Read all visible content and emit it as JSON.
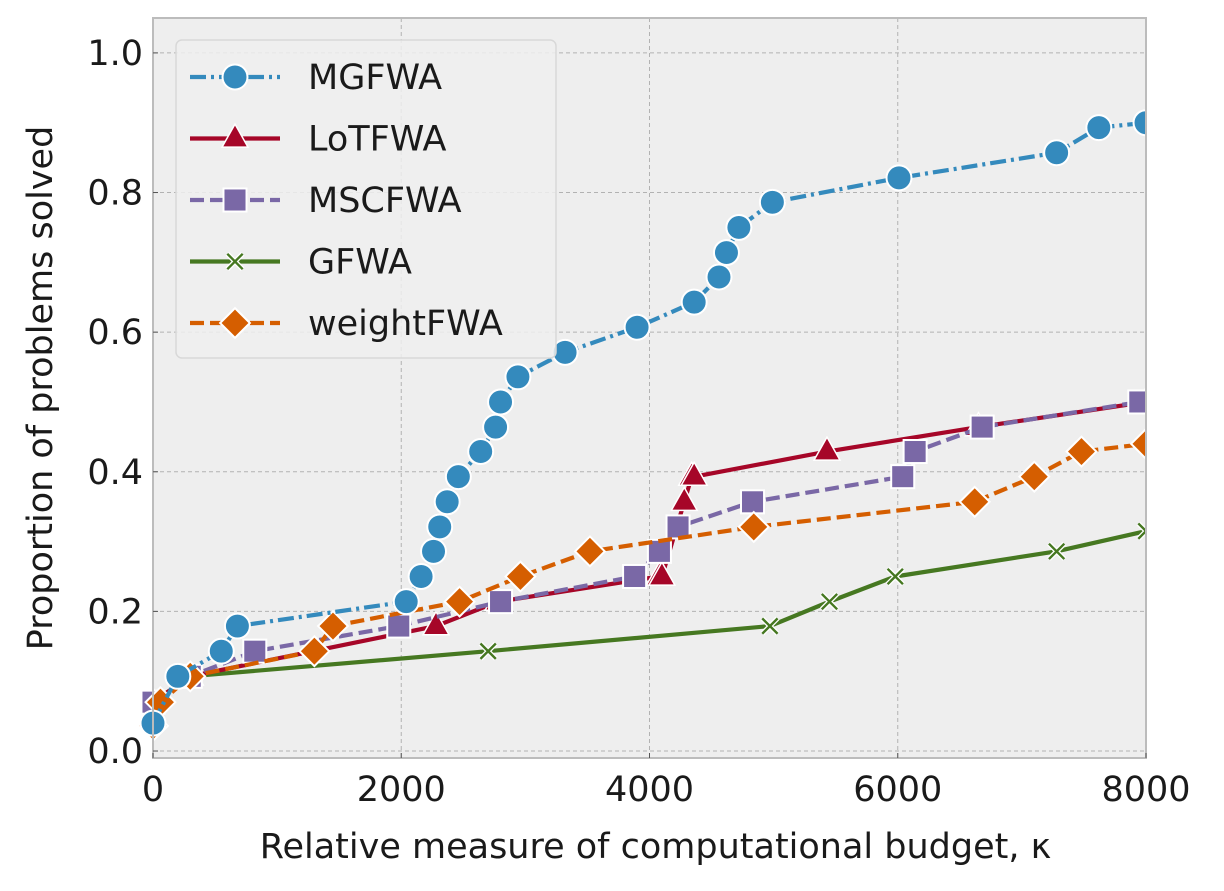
{
  "chart_data": {
    "type": "line",
    "title": "",
    "xlabel": "Relative measure of computational budget, κ",
    "ylabel": "Proportion of problems solved",
    "xlim": [
      0,
      8000
    ],
    "ylim": [
      -0.01,
      1.05
    ],
    "xticks": [
      0,
      2000,
      4000,
      6000,
      8000
    ],
    "xtick_labels": [
      "0",
      "2000",
      "4000",
      "6000",
      "8000"
    ],
    "yticks": [
      0.0,
      0.2,
      0.4,
      0.6,
      0.8,
      1.0
    ],
    "ytick_labels": [
      "0.0",
      "0.2",
      "0.4",
      "0.6",
      "0.8",
      "1.0"
    ],
    "grid": true,
    "legend_position": "top-left",
    "series": [
      {
        "name": "MGFWA",
        "color": "#348abd",
        "marker": "circle",
        "dash": "dashdot",
        "x": [
          0,
          200,
          550,
          680,
          2040,
          2160,
          2260,
          2310,
          2370,
          2460,
          2640,
          2760,
          2800,
          2940,
          3320,
          3900,
          4360,
          4560,
          4620,
          4720,
          4990,
          6010,
          7280,
          7620,
          8000
        ],
        "y": [
          0.04,
          0.107,
          0.143,
          0.179,
          0.214,
          0.25,
          0.286,
          0.321,
          0.357,
          0.393,
          0.429,
          0.464,
          0.5,
          0.536,
          0.571,
          0.607,
          0.643,
          0.679,
          0.714,
          0.75,
          0.786,
          0.821,
          0.857,
          0.893,
          0.9
        ]
      },
      {
        "name": "LoTFWA",
        "color": "#a60628",
        "marker": "triangle",
        "dash": "solid",
        "x": [
          0,
          300,
          2280,
          2780,
          4080,
          4100,
          4280,
          4340,
          4360,
          5430,
          6650,
          8000
        ],
        "y": [
          0.07,
          0.107,
          0.179,
          0.214,
          0.25,
          0.25,
          0.357,
          0.393,
          0.393,
          0.429,
          0.464,
          0.5
        ]
      },
      {
        "name": "MSCFWA",
        "color": "#7a68a6",
        "marker": "square",
        "dash": "dashed",
        "x": [
          0,
          300,
          820,
          1980,
          2800,
          3880,
          4080,
          4230,
          4830,
          6040,
          6140,
          6680,
          7950
        ],
        "y": [
          0.07,
          0.107,
          0.143,
          0.179,
          0.214,
          0.25,
          0.286,
          0.321,
          0.357,
          0.393,
          0.429,
          0.464,
          0.5
        ]
      },
      {
        "name": "GFWA",
        "color": "#467821",
        "marker": "x",
        "dash": "solid",
        "x": [
          0,
          300,
          2700,
          4970,
          5450,
          5980,
          7280,
          8000
        ],
        "y": [
          0.07,
          0.107,
          0.143,
          0.179,
          0.214,
          0.25,
          0.286,
          0.315
        ]
      },
      {
        "name": "weightFWA",
        "color": "#d55e00",
        "marker": "diamond",
        "dash": "dashed",
        "x": [
          0,
          60,
          300,
          1300,
          1450,
          2470,
          2960,
          3520,
          4840,
          6620,
          7100,
          7480,
          8000
        ],
        "y": [
          0.036,
          0.07,
          0.107,
          0.143,
          0.179,
          0.214,
          0.25,
          0.286,
          0.321,
          0.357,
          0.393,
          0.429,
          0.44
        ]
      }
    ]
  }
}
